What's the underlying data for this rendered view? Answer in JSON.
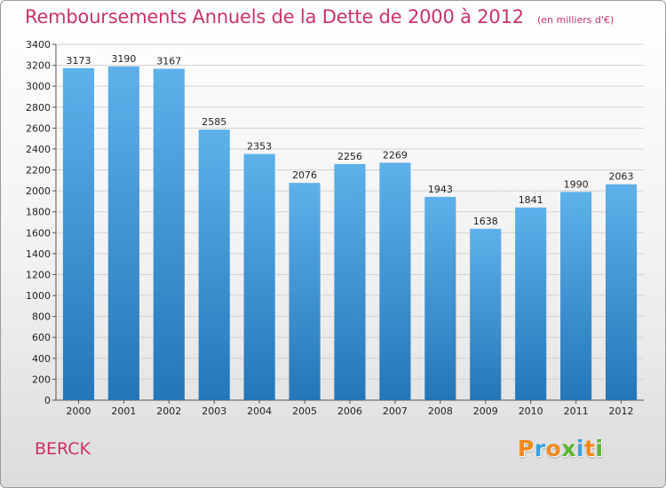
{
  "header": {
    "title": "Remboursements Annuels de la Dette de 2000 à 2012",
    "unit": "(en milliers d'€)"
  },
  "footer": {
    "place": "BERCK",
    "brand": "Proxiti"
  },
  "colors": {
    "title": "#c8336a",
    "bar_top": "#5eb1ea",
    "bar_bottom": "#2476b8",
    "brand_letters": [
      "#f08a1c",
      "#3aa0dd",
      "#f08a1c",
      "#5ab52f",
      "#3aa0dd",
      "#f08a1c",
      "#5ab52f"
    ]
  },
  "chart_data": {
    "type": "bar",
    "categories": [
      "2000",
      "2001",
      "2002",
      "2003",
      "2004",
      "2005",
      "2006",
      "2007",
      "2008",
      "2009",
      "2010",
      "2011",
      "2012"
    ],
    "values": [
      3173,
      3190,
      3167,
      2585,
      2353,
      2076,
      2256,
      2269,
      1943,
      1638,
      1841,
      1990,
      2063
    ],
    "title": "Remboursements Annuels de la Dette de 2000 à 2012",
    "ylim": [
      0,
      3400
    ],
    "yticks": [
      0,
      200,
      400,
      600,
      800,
      1000,
      1200,
      1400,
      1600,
      1800,
      2000,
      2200,
      2400,
      2600,
      2800,
      3000,
      3200,
      3400
    ],
    "grid": true,
    "data_labels": true
  }
}
